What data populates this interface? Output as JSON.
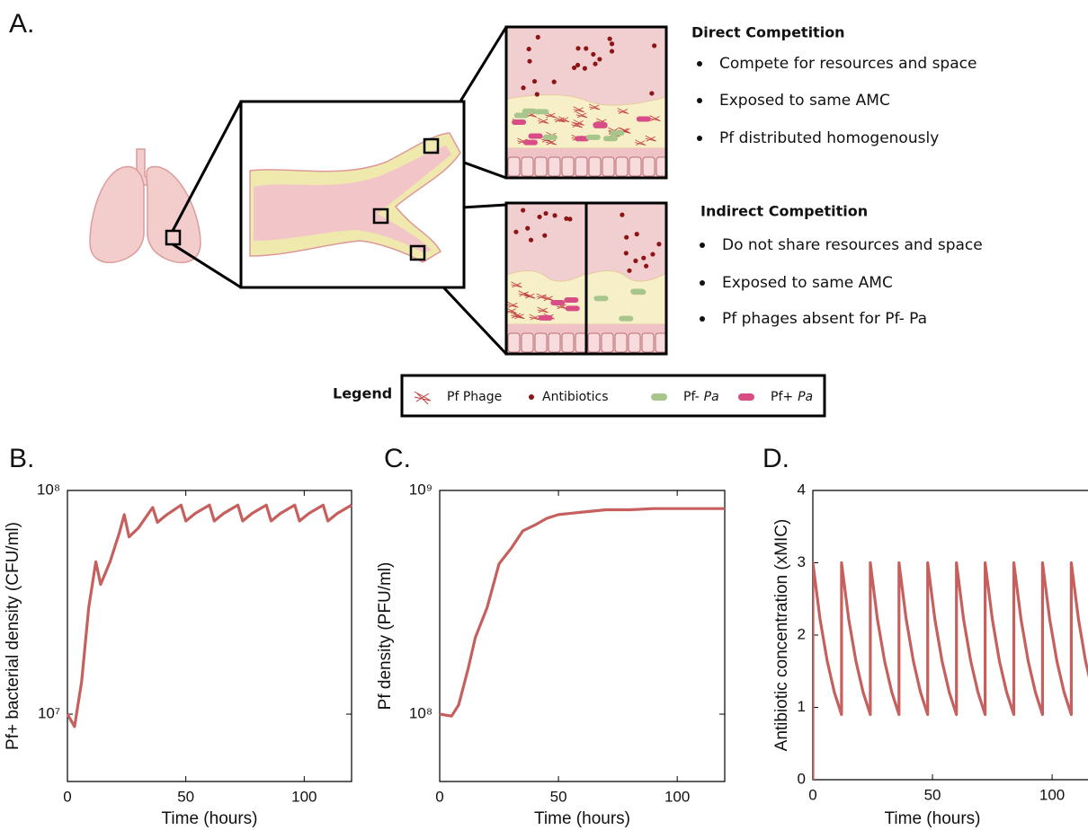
{
  "diagram": {
    "panel": "A.",
    "direct": {
      "title": "Direct Competition",
      "bullets": [
        "Compete for resources and space",
        "Exposed to same AMC",
        "Pf distributed homogenously"
      ]
    },
    "indirect": {
      "title": "Indirect Competition",
      "bullets": [
        "Do not share resources and space",
        "Exposed to same AMC",
        "Pf phages absent for Pf- Pa"
      ]
    },
    "legend": {
      "title": "Legend",
      "items": [
        {
          "label": "Pf Phage"
        },
        {
          "label": "Antibiotics"
        },
        {
          "label": "Pf-",
          "italic": "Pa"
        },
        {
          "label": "Pf+",
          "italic": "Pa"
        }
      ]
    }
  },
  "chart_data": [
    {
      "type": "line",
      "label": "B.",
      "color": "#c5605f",
      "log_y": true,
      "xlabel": "Time (hours)",
      "ylabel": "Pf+ bacterial density (CFU/ml)",
      "xlim": [
        0,
        120
      ],
      "xticks": [
        0,
        50,
        100
      ],
      "ylim": [
        5000000,
        100000000
      ],
      "yticks": [
        {
          "value": 10000000,
          "label": "10⁷"
        },
        {
          "value": 100000000,
          "label": "10⁸"
        }
      ],
      "x": [
        0,
        3,
        6,
        9,
        12,
        14,
        18,
        22,
        24,
        26,
        30,
        36,
        38,
        42,
        48,
        50,
        54,
        60,
        62,
        66,
        72,
        74,
        78,
        84,
        86,
        90,
        96,
        98,
        102,
        108,
        110,
        114,
        120
      ],
      "values": [
        10000000,
        8800000,
        14000000,
        30000000,
        48000000,
        38000000,
        48000000,
        65000000,
        78000000,
        62000000,
        68000000,
        84000000,
        72000000,
        78000000,
        86000000,
        73000000,
        79000000,
        86000000,
        73000000,
        79000000,
        86000000,
        73000000,
        79000000,
        86000000,
        73000000,
        79000000,
        86000000,
        73000000,
        79000000,
        86000000,
        73000000,
        79000000,
        86000000
      ]
    },
    {
      "type": "line",
      "label": "C.",
      "color": "#c5605f",
      "log_y": true,
      "xlabel": "Time (hours)",
      "ylabel": "Pf density (PFU/ml)",
      "xlim": [
        0,
        120
      ],
      "xticks": [
        0,
        50,
        100
      ],
      "ylim": [
        50000000,
        1000000000
      ],
      "yticks": [
        {
          "value": 100000000,
          "label": "10⁸"
        },
        {
          "value": 1000000000,
          "label": "10⁹"
        }
      ],
      "x": [
        0,
        5,
        8,
        12,
        15,
        20,
        25,
        30,
        35,
        40,
        45,
        50,
        60,
        70,
        80,
        90,
        100,
        110,
        120
      ],
      "values": [
        100000000,
        98000000,
        110000000,
        160000000,
        220000000,
        300000000,
        470000000,
        550000000,
        660000000,
        700000000,
        750000000,
        780000000,
        800000000,
        820000000,
        820000000,
        830000000,
        830000000,
        830000000,
        830000000
      ]
    },
    {
      "type": "line",
      "label": "D.",
      "color": "#c5605f",
      "log_y": false,
      "xlabel": "Time (hours)",
      "ylabel": "Antibiotic concentration (xMIC)",
      "xlim": [
        0,
        115
      ],
      "xticks": [
        0,
        50,
        100
      ],
      "ylim": [
        0,
        4
      ],
      "yticks": [
        0,
        1,
        2,
        3,
        4
      ],
      "x": [
        0,
        0,
        3,
        6,
        9,
        12,
        12,
        15,
        18,
        21,
        24,
        24,
        27,
        30,
        33,
        36,
        36,
        39,
        42,
        45,
        48,
        48,
        51,
        54,
        57,
        60,
        60,
        63,
        66,
        69,
        72,
        72,
        75,
        78,
        81,
        84,
        84,
        87,
        90,
        93,
        96,
        96,
        99,
        102,
        105,
        108,
        108,
        111,
        114,
        116
      ],
      "values": [
        0,
        3,
        2.22,
        1.64,
        1.21,
        0.9,
        3,
        2.22,
        1.64,
        1.21,
        0.9,
        3,
        2.22,
        1.64,
        1.21,
        0.9,
        3,
        2.22,
        1.64,
        1.21,
        0.9,
        3,
        2.22,
        1.64,
        1.21,
        0.9,
        3,
        2.22,
        1.64,
        1.21,
        0.9,
        3,
        2.22,
        1.64,
        1.21,
        0.9,
        3,
        2.22,
        1.64,
        1.21,
        0.9,
        3,
        2.22,
        1.64,
        1.21,
        0.9,
        3,
        2.22,
        1.64,
        1.35
      ]
    }
  ]
}
